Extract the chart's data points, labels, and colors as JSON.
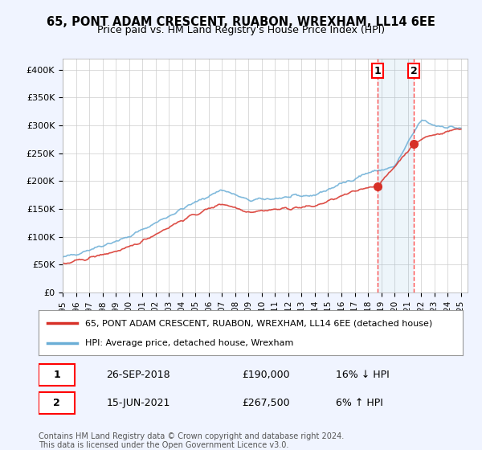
{
  "title": "65, PONT ADAM CRESCENT, RUABON, WREXHAM, LL14 6EE",
  "subtitle": "Price paid vs. HM Land Registry's House Price Index (HPI)",
  "legend_line1": "65, PONT ADAM CRESCENT, RUABON, WREXHAM, LL14 6EE (detached house)",
  "legend_line2": "HPI: Average price, detached house, Wrexham",
  "transaction1_label": "1",
  "transaction1_date": "26-SEP-2018",
  "transaction1_price": "£190,000",
  "transaction1_hpi": "16% ↓ HPI",
  "transaction2_label": "2",
  "transaction2_date": "15-JUN-2021",
  "transaction2_price": "£267,500",
  "transaction2_hpi": "6% ↑ HPI",
  "footer": "Contains HM Land Registry data © Crown copyright and database right 2024.\nThis data is licensed under the Open Government Licence v3.0.",
  "hpi_color": "#6baed6",
  "price_color": "#d73027",
  "marker_color": "#d73027",
  "transaction1_x": 2018.74,
  "transaction1_y": 190000,
  "transaction2_x": 2021.45,
  "transaction2_y": 267500,
  "ylim_min": 0,
  "ylim_max": 420000,
  "xlim_min": 1995,
  "xlim_max": 2025.5,
  "yticks": [
    0,
    50000,
    100000,
    150000,
    200000,
    250000,
    300000,
    350000,
    400000
  ],
  "ytick_labels": [
    "£0",
    "£50K",
    "£100K",
    "£150K",
    "£200K",
    "£250K",
    "£300K",
    "£350K",
    "£400K"
  ],
  "xticks": [
    1995,
    1996,
    1997,
    1998,
    1999,
    2000,
    2001,
    2002,
    2003,
    2004,
    2005,
    2006,
    2007,
    2008,
    2009,
    2010,
    2011,
    2012,
    2013,
    2014,
    2015,
    2016,
    2017,
    2018,
    2019,
    2020,
    2021,
    2022,
    2023,
    2024,
    2025
  ],
  "background_color": "#f0f4ff",
  "plot_bg_color": "#ffffff"
}
